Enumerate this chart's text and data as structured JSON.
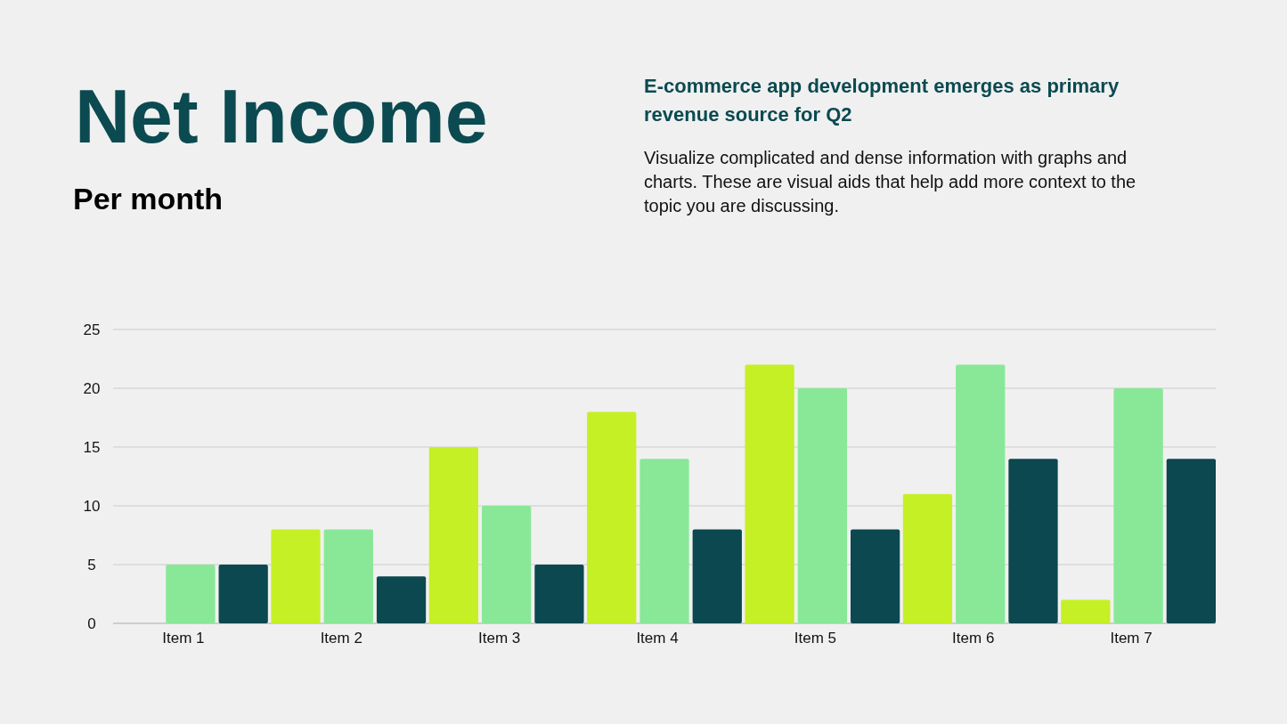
{
  "chart_data": {
    "type": "bar",
    "title": "Net Income",
    "subtitle": "Per month",
    "annotations": [
      "E-commerce app development emerges as primary revenue source for Q2",
      "Visualize complicated and dense information with graphs and charts. These are visual aids that help add more context to the topic you are discussing."
    ],
    "categories": [
      "Item 1",
      "Item 2",
      "Item 3",
      "Item 4",
      "Item 5",
      "Item 6",
      "Item 7"
    ],
    "series": [
      {
        "color": "#c5f025",
        "values": [
          0,
          8,
          15,
          18,
          22,
          11,
          2
        ]
      },
      {
        "color": "#88e897",
        "values": [
          5,
          8,
          10,
          14,
          20,
          22,
          20
        ]
      },
      {
        "color": "#0b4850",
        "values": [
          5,
          4,
          5,
          8,
          8,
          14,
          14
        ]
      }
    ],
    "ylim": [
      0,
      25
    ],
    "yticks": [
      0,
      5,
      10,
      15,
      20,
      25
    ],
    "grid": "y"
  }
}
